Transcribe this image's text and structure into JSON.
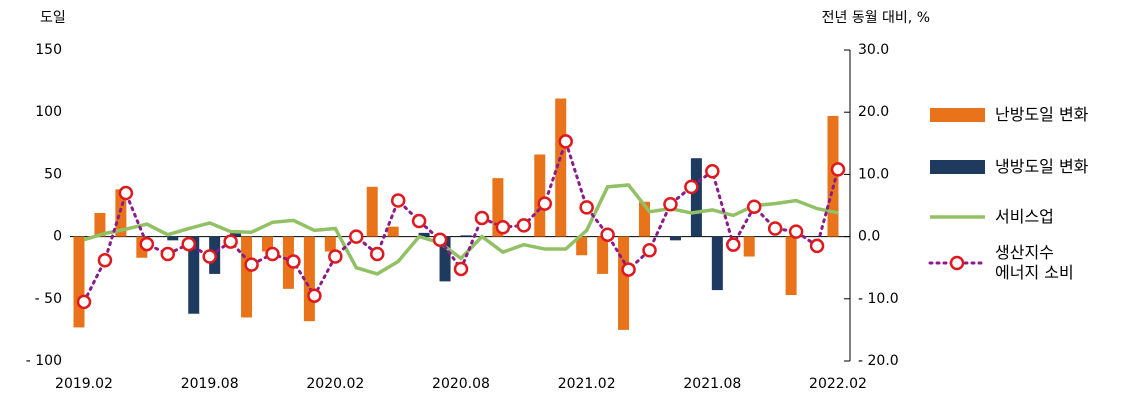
{
  "chart_data": {
    "type": "bar-line",
    "y_label": "도일",
    "y2_label": "전년 동월 대비, %",
    "categories": [
      "2019.02",
      null,
      null,
      null,
      null,
      null,
      "2019.08",
      null,
      null,
      null,
      null,
      null,
      "2020.02",
      null,
      null,
      null,
      null,
      null,
      "2020.08",
      null,
      null,
      null,
      null,
      null,
      "2021.02",
      null,
      null,
      null,
      null,
      null,
      "2021.08",
      null,
      null,
      null,
      null,
      null,
      "2022.02"
    ],
    "ylim": [
      -100,
      150
    ],
    "yticks": [
      {
        "value": -100,
        "label": "- 100"
      },
      {
        "value": -50,
        "label": "- 50"
      },
      0,
      50,
      100,
      150
    ],
    "y2lim": [
      -20,
      30
    ],
    "y2ticks": [
      {
        "value": -20,
        "label": "- 20.0"
      },
      {
        "value": -10,
        "label": "- 10.0"
      },
      {
        "value": 0,
        "label": "0.0"
      },
      {
        "value": 10,
        "label": "10.0"
      },
      {
        "value": 20,
        "label": "20.0"
      },
      {
        "value": 30,
        "label": "30.0"
      }
    ],
    "series": [
      {
        "name": "난방도일 변화",
        "color": "#e8731a",
        "kind": "bar",
        "values": [
          -73,
          19,
          38,
          -17,
          0,
          0,
          0,
          0,
          -65,
          -12,
          -42,
          -68,
          -12,
          0,
          40,
          8,
          0,
          0,
          0,
          0,
          47,
          0,
          66,
          111,
          -15,
          -30,
          -75,
          28,
          0,
          0,
          0,
          0,
          -16,
          0,
          -47,
          0,
          97
        ]
      },
      {
        "name": "냉방도일 변화",
        "color": "#1f3a5f",
        "kind": "bar",
        "values": [
          0,
          0,
          0,
          0,
          -3,
          -62,
          -30,
          5,
          0,
          0,
          0,
          0,
          0,
          0,
          0,
          0,
          3,
          -36,
          1,
          0,
          0,
          0,
          0,
          0,
          0,
          0,
          0,
          0,
          -3,
          63,
          -43,
          0,
          0,
          0,
          0,
          0,
          0
        ]
      },
      {
        "name": "서비스업",
        "color": "#92c064",
        "kind": "line",
        "axis": "y2",
        "values": [
          -0.5,
          0.5,
          1.2,
          2.0,
          0.3,
          1.3,
          2.2,
          0.8,
          0.7,
          2.3,
          2.6,
          1.0,
          1.3,
          -5.0,
          -6.0,
          -4.0,
          0.0,
          -1.0,
          -3.5,
          0.0,
          -2.5,
          -1.3,
          -2.0,
          -2.0,
          1.0,
          8.0,
          8.3,
          4.0,
          4.5,
          3.8,
          4.3,
          3.4,
          5.0,
          5.3,
          5.8,
          4.5,
          3.8
        ]
      },
      {
        "name": "생산지수\n에너지 소비",
        "color": "#8b1a8b",
        "kind": "dots",
        "axis": "y2",
        "values": [
          -10.5,
          -3.8,
          7.0,
          -1.2,
          -2.8,
          -1.2,
          -3.2,
          -0.8,
          -4.5,
          -2.8,
          -4.0,
          -9.5,
          -3.2,
          0.0,
          -2.8,
          5.8,
          2.5,
          -0.5,
          -5.2,
          3.0,
          1.5,
          1.8,
          5.3,
          15.3,
          4.7,
          0.3,
          -5.3,
          -2.2,
          5.2,
          8.0,
          10.5,
          -1.3,
          4.8,
          1.3,
          0.8,
          -1.5,
          10.8
        ]
      }
    ]
  }
}
